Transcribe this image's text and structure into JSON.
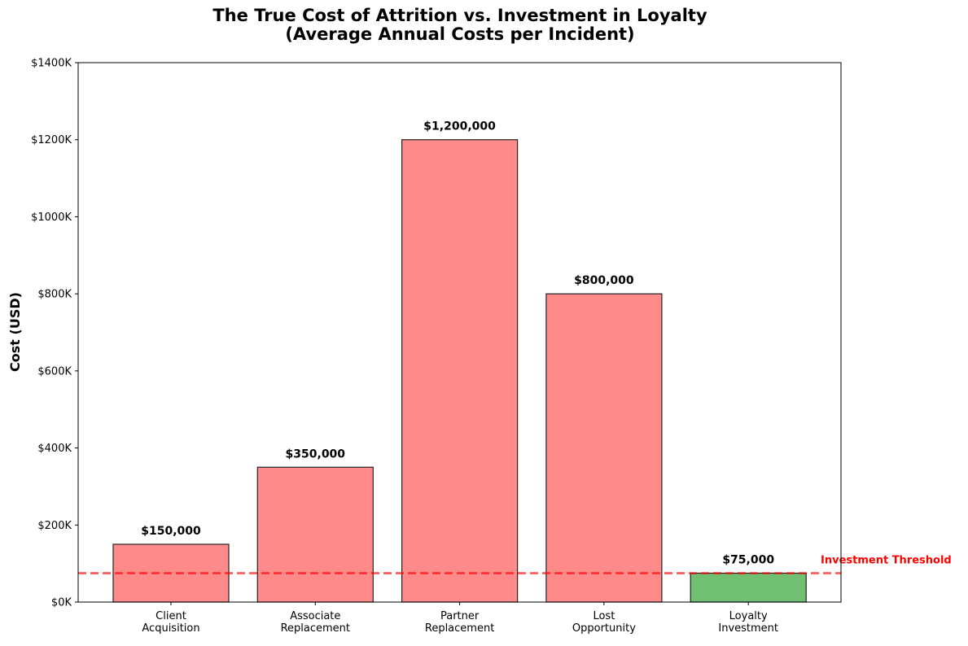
{
  "chart_data": {
    "type": "bar",
    "title_line1": "The True Cost of Attrition vs. Investment in Loyalty",
    "title_line2": "(Average Annual Costs per Incident)",
    "xlabel": "",
    "ylabel": "Cost (USD)",
    "ylim": [
      0,
      1400000
    ],
    "yticks": [
      0,
      200000,
      400000,
      600000,
      800000,
      1000000,
      1200000,
      1400000
    ],
    "ytick_labels": [
      "$0K",
      "$200K",
      "$400K",
      "$600K",
      "$800K",
      "$1000K",
      "$1200K",
      "$1400K"
    ],
    "categories": [
      [
        "Client",
        "Acquisition"
      ],
      [
        "Associate",
        "Replacement"
      ],
      [
        "Partner",
        "Replacement"
      ],
      [
        "Lost",
        "Opportunity"
      ],
      [
        "Loyalty",
        "Investment"
      ]
    ],
    "values": [
      150000,
      350000,
      1200000,
      800000,
      75000
    ],
    "data_labels": [
      "$150,000",
      "$350,000",
      "$1,200,000",
      "$800,000",
      "$75,000"
    ],
    "bar_colors": [
      "#ff8a8a",
      "#ff8a8a",
      "#ff8a8a",
      "#ff8a8a",
      "#70bf73"
    ],
    "edge_color": "#222222",
    "threshold": {
      "value": 75000,
      "label": "Investment Threshold",
      "color": "#ff0000",
      "style": "dashed"
    },
    "grid": false,
    "legend": "none"
  }
}
